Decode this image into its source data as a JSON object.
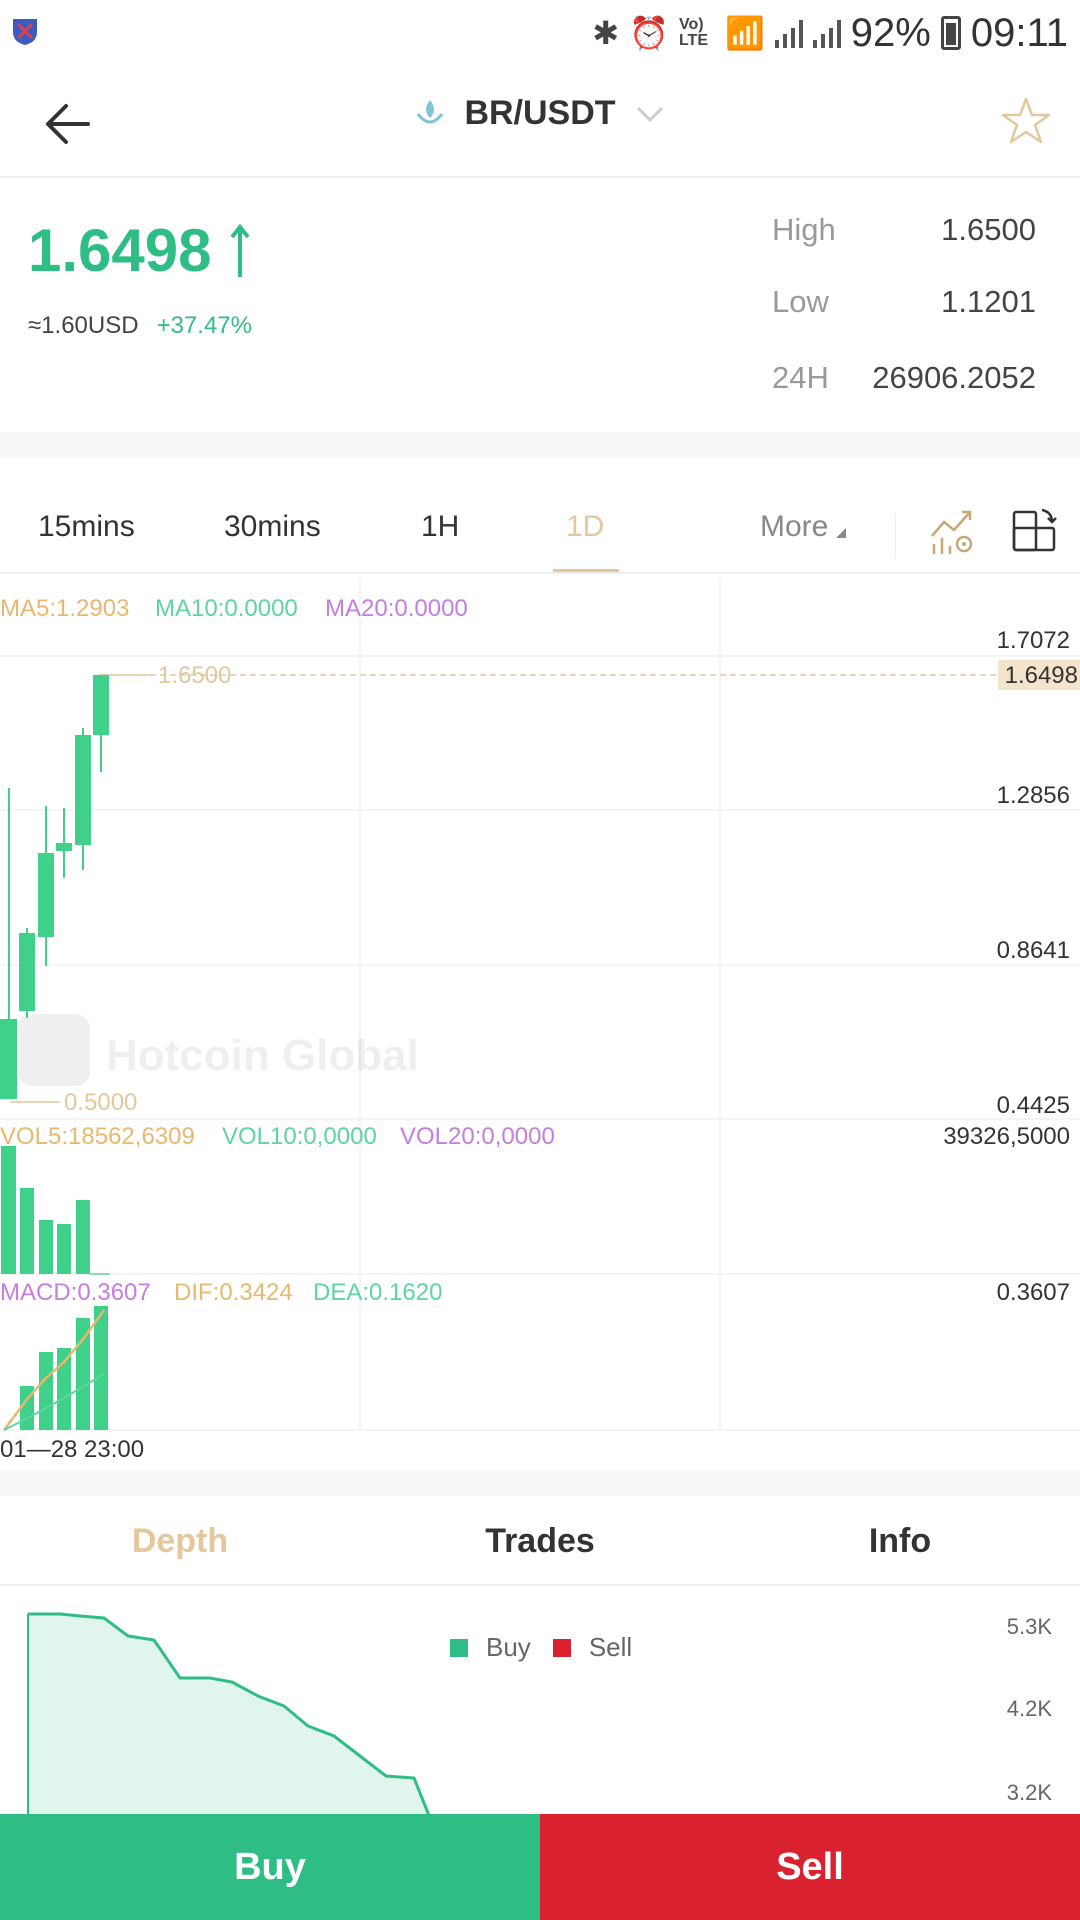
{
  "status_bar": {
    "battery": "92%",
    "time": "09:11",
    "volte": "Vo) LTE"
  },
  "header": {
    "pair": "BR/USDT",
    "back_icon": "arrow-left-icon",
    "favorite_icon": "star-icon"
  },
  "summary": {
    "price": "1.6498",
    "usd_equiv": "≈1.60USD",
    "change": "+37.47%",
    "stats": [
      {
        "label": "High",
        "value": "1.6500"
      },
      {
        "label": "Low",
        "value": "1.1201"
      },
      {
        "label": "24H",
        "value": "26906.2052"
      }
    ]
  },
  "intervals": {
    "tabs": [
      "15mins",
      "30mins",
      "1H",
      "1D"
    ],
    "active": "1D",
    "more": "More"
  },
  "chart": {
    "ma_labels": [
      "MA5:1.2903",
      "MA10:0.0000",
      "MA20:0.0000"
    ],
    "price_axis": [
      "1.7072",
      "1.2856",
      "0.8641",
      "0.4425"
    ],
    "current_price_tag": "1.6498",
    "high_marker": "1.6500",
    "low_marker": "0.5000",
    "vol_labels": [
      "VOL5:18562,6309",
      "VOL10:0,0000",
      "VOL20:0,0000"
    ],
    "vol_axis": "39326,5000",
    "macd_labels": [
      "MACD:0.3607",
      "DIF:0.3424",
      "DEA:0.1620"
    ],
    "macd_axis": "0.3607",
    "time_label": "01—28 23:00",
    "watermark": "Hotcoin Global"
  },
  "bottom_tabs": {
    "tabs": [
      "Depth",
      "Trades",
      "Info"
    ],
    "active": "Depth"
  },
  "depth": {
    "legend_buy": "Buy",
    "legend_sell": "Sell",
    "y_axis": [
      "5.3K",
      "4.2K",
      "3.2K"
    ]
  },
  "actions": {
    "buy": "Buy",
    "sell": "Sell"
  },
  "colors": {
    "green": "#2fbd86",
    "red": "#d9212f",
    "gold": "#e5c79e"
  }
}
